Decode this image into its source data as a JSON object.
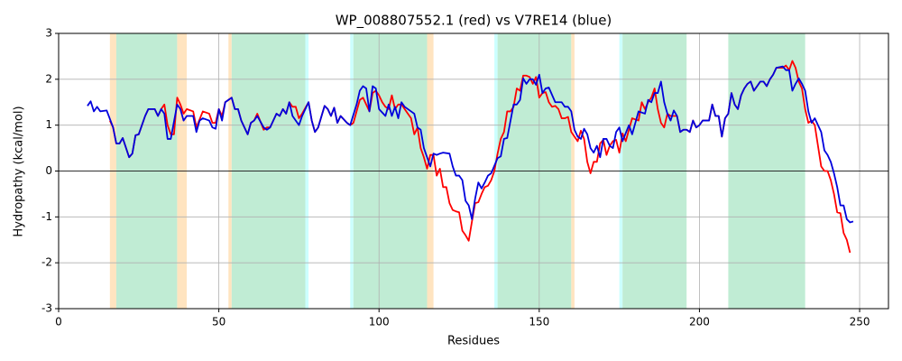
{
  "chart_data": {
    "type": "line",
    "title": "WP_008807552.1 (red) vs V7RE14 (blue)",
    "xlabel": "Residues",
    "ylabel": "Hydropathy (kcal/mol)",
    "xlim": [
      0,
      259
    ],
    "ylim": [
      -3,
      3
    ],
    "xticks": [
      0,
      50,
      100,
      150,
      200,
      250
    ],
    "yticks": [
      -3,
      -2,
      -1,
      0,
      1,
      2,
      3
    ],
    "grid": true,
    "hline": 0,
    "regions": [
      {
        "start": 16,
        "end": 18,
        "color": "#ffe4c0"
      },
      {
        "start": 18,
        "end": 37,
        "color": "#c0ecd4"
      },
      {
        "start": 37,
        "end": 40,
        "color": "#ffe4c0"
      },
      {
        "start": 53,
        "end": 54,
        "color": "#ffe4c0"
      },
      {
        "start": 54,
        "end": 77,
        "color": "#c0ecd4"
      },
      {
        "start": 77,
        "end": 78,
        "color": "#ccffff"
      },
      {
        "start": 91,
        "end": 92,
        "color": "#ccffff"
      },
      {
        "start": 92,
        "end": 115,
        "color": "#c0ecd4"
      },
      {
        "start": 115,
        "end": 117,
        "color": "#ffe4c0"
      },
      {
        "start": 136,
        "end": 137,
        "color": "#ccffff"
      },
      {
        "start": 137,
        "end": 160,
        "color": "#c0ecd4"
      },
      {
        "start": 160,
        "end": 161,
        "color": "#ffe4c0"
      },
      {
        "start": 175,
        "end": 176,
        "color": "#ccffff"
      },
      {
        "start": 176,
        "end": 196,
        "color": "#c0ecd4"
      },
      {
        "start": 209,
        "end": 233,
        "color": "#c0ecd4"
      }
    ],
    "series": [
      {
        "name": "WP_008807552.1",
        "color": "#ff0000",
        "x": [
          16,
          17,
          18,
          19,
          20,
          22,
          23,
          24,
          25,
          27,
          28,
          30,
          31,
          32,
          33,
          34,
          35,
          36,
          37,
          38,
          39,
          40,
          42,
          43,
          45,
          47,
          48,
          49,
          50,
          51,
          52,
          54,
          55,
          56,
          57,
          59,
          60,
          61,
          62,
          64,
          65,
          66,
          68,
          69,
          70,
          71,
          72,
          73,
          74,
          75,
          76,
          78,
          79,
          80,
          81,
          83,
          84,
          85,
          86,
          87,
          88,
          90,
          91,
          92,
          93,
          94,
          95,
          96,
          97,
          98,
          99,
          100,
          101,
          102,
          103,
          104,
          105,
          106,
          107,
          108,
          110,
          111,
          112,
          113,
          114,
          115,
          116,
          117,
          118,
          119,
          120,
          121,
          122,
          123,
          124,
          125,
          126,
          127,
          128,
          129,
          130,
          131,
          132,
          133,
          134,
          135,
          136,
          137,
          138,
          139,
          140,
          141,
          142,
          143,
          144,
          145,
          146,
          147,
          148,
          149,
          150,
          151,
          152,
          153,
          154,
          155,
          156,
          157,
          158,
          159,
          160,
          161,
          162,
          163,
          164,
          165,
          166,
          167,
          168,
          169,
          170,
          171,
          172,
          173,
          174,
          175,
          176,
          177,
          178,
          179,
          181,
          182,
          183,
          184,
          185,
          186,
          187,
          188,
          189,
          190,
          191,
          193,
          194,
          195,
          196,
          197,
          198,
          199,
          200,
          201,
          203,
          204,
          205,
          206,
          207,
          208,
          209,
          210,
          211,
          212,
          213,
          214,
          215,
          216,
          217,
          218,
          219,
          220,
          221,
          222,
          223,
          224,
          226,
          227,
          228,
          229,
          230,
          231,
          232,
          233,
          234,
          235,
          236,
          237,
          238,
          239,
          240,
          241,
          242,
          243,
          244,
          245,
          246,
          247
        ],
        "values": [
          1.1,
          0.95,
          0.6,
          0.6,
          0.72,
          0.3,
          0.38,
          0.78,
          0.8,
          1.2,
          1.35,
          1.35,
          1.2,
          1.35,
          1.45,
          1.0,
          0.8,
          0.8,
          1.6,
          1.45,
          1.25,
          1.35,
          1.3,
          0.95,
          1.3,
          1.25,
          1.05,
          1.05,
          1.35,
          1.2,
          1.5,
          1.6,
          1.35,
          1.35,
          1.1,
          0.8,
          1.05,
          1.1,
          1.25,
          0.9,
          0.95,
          0.95,
          1.25,
          1.2,
          1.35,
          1.25,
          1.5,
          1.4,
          1.4,
          1.15,
          1.25,
          1.5,
          1.1,
          0.85,
          0.95,
          1.42,
          1.35,
          1.2,
          1.38,
          1.05,
          1.2,
          1.05,
          1.0,
          1.05,
          1.3,
          1.55,
          1.6,
          1.45,
          1.3,
          1.7,
          1.75,
          1.65,
          1.5,
          1.4,
          1.35,
          1.65,
          1.35,
          1.45,
          1.45,
          1.35,
          1.15,
          0.8,
          0.95,
          0.5,
          0.3,
          0.05,
          0.35,
          0.35,
          -0.1,
          0.05,
          -0.35,
          -0.35,
          -0.7,
          -0.85,
          -0.88,
          -0.9,
          -1.3,
          -1.4,
          -1.52,
          -1.1,
          -0.7,
          -0.68,
          -0.5,
          -0.35,
          -0.32,
          -0.2,
          0.0,
          0.38,
          0.7,
          0.85,
          1.3,
          1.3,
          1.4,
          1.8,
          1.75,
          2.08,
          2.08,
          2.05,
          1.9,
          2.05,
          1.6,
          1.7,
          1.72,
          1.5,
          1.4,
          1.42,
          1.35,
          1.15,
          1.15,
          1.18,
          0.85,
          0.75,
          0.65,
          0.88,
          0.7,
          0.2,
          -0.05,
          0.2,
          0.2,
          0.6,
          0.68,
          0.35,
          0.55,
          0.65,
          0.68,
          0.4,
          0.82,
          0.65,
          0.9,
          1.15,
          1.1,
          1.5,
          1.35,
          1.5,
          1.6,
          1.8,
          1.35,
          1.05,
          0.95,
          1.25,
          1.2,
          1.2,
          0.85,
          0.9,
          0.9,
          0.85,
          1.1,
          0.95,
          1.0,
          1.1,
          1.1,
          1.45,
          1.2,
          1.2,
          0.75,
          1.15,
          1.25,
          1.7,
          1.45,
          1.35,
          1.65,
          1.8,
          1.9,
          1.95,
          1.75,
          1.85,
          1.95,
          1.95,
          1.85,
          2.0,
          2.1,
          2.25,
          2.25,
          2.3,
          2.2,
          2.4,
          2.25,
          1.95,
          1.8,
          1.35,
          1.05,
          1.1,
          1.0,
          0.55,
          0.1,
          0.0,
          0.0,
          -0.2,
          -0.5,
          -0.9,
          -0.92,
          -1.35,
          -1.5,
          -1.78
        ]
      },
      {
        "name": "V7RE14",
        "color": "#0000dd",
        "x": [
          9,
          10,
          11,
          12,
          13,
          15,
          17,
          18,
          19,
          20,
          22,
          23,
          24,
          25,
          27,
          28,
          30,
          31,
          32,
          33,
          34,
          35,
          37,
          38,
          39,
          40,
          42,
          43,
          44,
          45,
          47,
          48,
          49,
          50,
          51,
          52,
          54,
          55,
          56,
          57,
          59,
          60,
          61,
          62,
          64,
          65,
          66,
          68,
          69,
          70,
          71,
          72,
          73,
          75,
          76,
          78,
          79,
          80,
          81,
          83,
          84,
          85,
          86,
          87,
          88,
          90,
          91,
          93,
          94,
          95,
          96,
          97,
          98,
          99,
          100,
          102,
          103,
          104,
          105,
          106,
          107,
          108,
          110,
          111,
          112,
          113,
          114,
          115,
          116,
          117,
          118,
          119,
          120,
          122,
          123,
          124,
          125,
          126,
          127,
          128,
          129,
          130,
          131,
          132,
          133,
          134,
          135,
          137,
          138,
          139,
          140,
          142,
          143,
          144,
          145,
          146,
          147,
          148,
          149,
          150,
          151,
          152,
          153,
          155,
          156,
          157,
          158,
          159,
          160,
          161,
          162,
          163,
          164,
          165,
          166,
          167,
          168,
          169,
          170,
          171,
          172,
          173,
          174,
          175,
          176,
          178,
          179,
          181,
          183,
          184,
          185,
          186,
          187,
          188,
          189,
          190,
          191,
          192,
          193,
          194,
          195,
          196,
          197,
          198,
          199,
          200,
          201,
          203,
          204,
          205,
          206,
          207,
          208,
          209,
          210,
          211,
          212,
          213,
          214,
          215,
          216,
          217,
          218,
          219,
          220,
          221,
          222,
          223,
          224,
          226,
          227,
          228,
          229,
          230,
          231,
          232,
          233,
          234,
          235,
          236,
          237,
          238,
          239,
          240,
          241,
          242,
          243,
          244,
          245,
          246,
          247,
          248
        ],
        "values": [
          1.42,
          1.52,
          1.3,
          1.4,
          1.3,
          1.32,
          0.95,
          0.6,
          0.6,
          0.72,
          0.3,
          0.38,
          0.78,
          0.8,
          1.2,
          1.35,
          1.35,
          1.2,
          1.35,
          1.25,
          0.7,
          0.7,
          1.45,
          1.35,
          1.1,
          1.2,
          1.2,
          0.85,
          1.1,
          1.15,
          1.1,
          0.95,
          0.92,
          1.35,
          1.1,
          1.5,
          1.6,
          1.35,
          1.35,
          1.1,
          0.8,
          1.05,
          1.1,
          1.2,
          0.95,
          0.9,
          0.95,
          1.25,
          1.2,
          1.35,
          1.25,
          1.5,
          1.2,
          1.0,
          1.2,
          1.5,
          1.1,
          0.85,
          0.95,
          1.42,
          1.35,
          1.2,
          1.38,
          1.05,
          1.2,
          1.05,
          1.0,
          1.45,
          1.75,
          1.85,
          1.8,
          1.3,
          1.85,
          1.8,
          1.35,
          1.2,
          1.45,
          1.2,
          1.4,
          1.15,
          1.5,
          1.4,
          1.3,
          1.25,
          0.95,
          0.9,
          0.5,
          0.3,
          0.1,
          0.38,
          0.35,
          0.38,
          0.4,
          0.38,
          0.1,
          -0.1,
          -0.1,
          -0.2,
          -0.65,
          -0.75,
          -1.05,
          -0.6,
          -0.25,
          -0.38,
          -0.25,
          -0.1,
          -0.05,
          0.28,
          0.32,
          0.7,
          0.72,
          1.45,
          1.45,
          1.55,
          2.02,
          1.9,
          2.0,
          2.0,
          1.88,
          2.1,
          1.7,
          1.8,
          1.82,
          1.5,
          1.5,
          1.5,
          1.4,
          1.4,
          1.3,
          0.9,
          0.75,
          0.7,
          0.92,
          0.8,
          0.5,
          0.4,
          0.55,
          0.3,
          0.7,
          0.7,
          0.55,
          0.5,
          0.85,
          0.95,
          0.65,
          1.0,
          0.8,
          1.3,
          1.25,
          1.55,
          1.5,
          1.7,
          1.7,
          1.95,
          1.5,
          1.25,
          1.1,
          1.32,
          1.2,
          0.85,
          0.9,
          0.9,
          0.85,
          1.1,
          0.95,
          1.0,
          1.1,
          1.1,
          1.45,
          1.2,
          1.2,
          0.75,
          1.15,
          1.25,
          1.7,
          1.45,
          1.35,
          1.65,
          1.8,
          1.9,
          1.95,
          1.75,
          1.85,
          1.95,
          1.95,
          1.85,
          2.0,
          2.1,
          2.25,
          2.28,
          2.2,
          2.2,
          1.75,
          1.9,
          2.02,
          1.9,
          1.75,
          1.3,
          1.05,
          1.15,
          1.0,
          0.85,
          0.45,
          0.35,
          0.2,
          -0.05,
          -0.35,
          -0.75,
          -0.75,
          -1.05,
          -1.12,
          -1.1
        ]
      }
    ]
  }
}
